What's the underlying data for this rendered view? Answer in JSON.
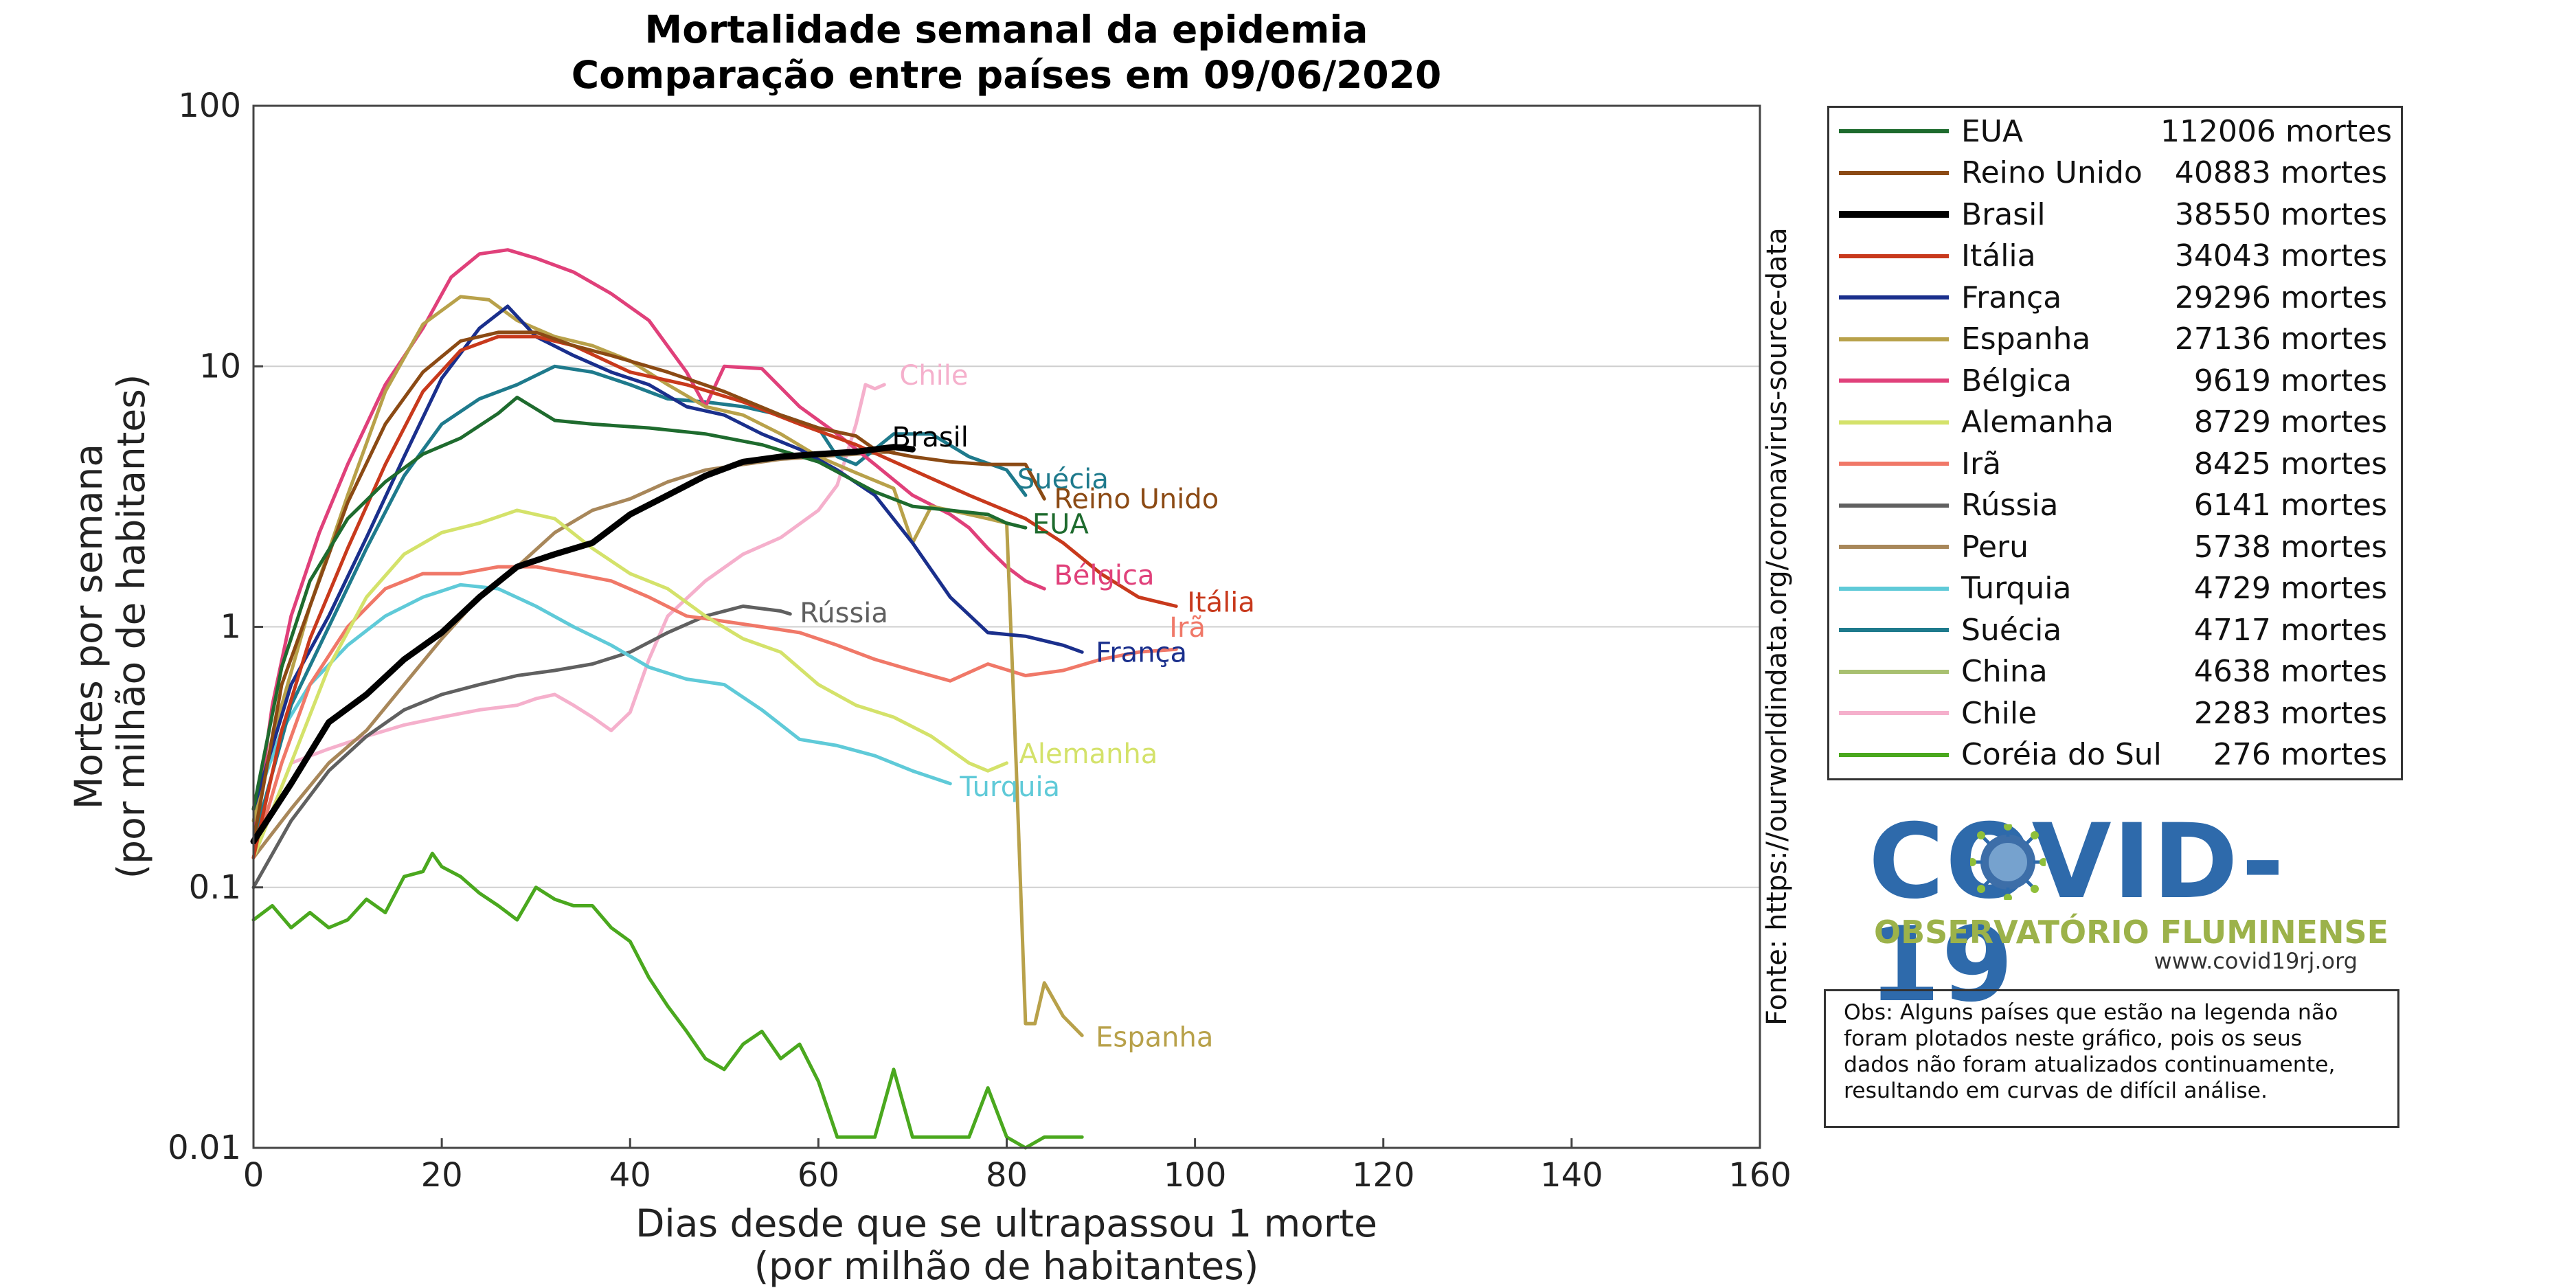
{
  "chart_data": {
    "type": "line",
    "title": "Mortalidade semanal da epidemia",
    "subtitle": "Comparação entre países em 09/06/2020",
    "xlabel": "Dias desde que se ultrapassou 1 morte",
    "xlabel2": "(por milhão de habitantes)",
    "ylabel": "Mortes por semana",
    "ylabel2": "(por milhão de habitantes)",
    "xlim": [
      0,
      160
    ],
    "ylim": [
      0.01,
      100
    ],
    "yscale": "log",
    "xticks": [
      0,
      20,
      40,
      60,
      80,
      100,
      120,
      140,
      160
    ],
    "yticks": [
      0.01,
      0.1,
      1,
      10,
      100
    ],
    "ytick_labels": [
      "0.01",
      "0.1",
      "1",
      "10",
      "100"
    ],
    "grid": "horizontal",
    "source": "Fonte: https://ourworldindata.org/coronavirus-source-data",
    "series": [
      {
        "name": "EUA",
        "deaths": "112006 mortes",
        "color": "#1e6b2e",
        "label": "EUA",
        "x": [
          0,
          3,
          6,
          10,
          14,
          18,
          22,
          26,
          28,
          32,
          36,
          42,
          48,
          54,
          60,
          66,
          70,
          74,
          78,
          80,
          82
        ],
        "y": [
          0.2,
          0.7,
          1.5,
          2.6,
          3.6,
          4.6,
          5.3,
          6.6,
          7.6,
          6.2,
          6.0,
          5.8,
          5.5,
          5.0,
          4.3,
          3.3,
          2.9,
          2.8,
          2.7,
          2.5,
          2.4
        ]
      },
      {
        "name": "Reino Unido",
        "deaths": "40883 mortes",
        "color": "#8b4a14",
        "label": "Reino Unido",
        "x": [
          0,
          3,
          6,
          10,
          14,
          18,
          22,
          26,
          30,
          34,
          38,
          44,
          50,
          56,
          60,
          64,
          66,
          70,
          74,
          78,
          82,
          84
        ],
        "y": [
          0.15,
          0.6,
          1.2,
          3.0,
          6.0,
          9.5,
          12.5,
          13.5,
          13.5,
          12.0,
          11.0,
          9.5,
          8.0,
          6.5,
          5.8,
          5.4,
          4.8,
          4.5,
          4.3,
          4.2,
          4.2,
          3.1
        ]
      },
      {
        "name": "Brasil",
        "deaths": "38550 mortes",
        "color": "#000000",
        "label": "Brasil",
        "bold": true,
        "x": [
          0,
          4,
          8,
          12,
          16,
          20,
          24,
          28,
          32,
          36,
          40,
          44,
          48,
          52,
          56,
          60,
          64,
          68,
          70
        ],
        "y": [
          0.15,
          0.25,
          0.43,
          0.55,
          0.75,
          0.95,
          1.3,
          1.7,
          1.9,
          2.1,
          2.7,
          3.2,
          3.8,
          4.3,
          4.5,
          4.6,
          4.7,
          4.9,
          4.8
        ]
      },
      {
        "name": "Itália",
        "deaths": "34043 mortes",
        "color": "#c8391c",
        "label": "Itália",
        "x": [
          0,
          3,
          6,
          10,
          14,
          18,
          22,
          26,
          30,
          34,
          40,
          46,
          52,
          58,
          64,
          70,
          76,
          82,
          86,
          90,
          94,
          98
        ],
        "y": [
          0.13,
          0.4,
          0.9,
          2.0,
          4.2,
          8.0,
          11.5,
          13.0,
          13.0,
          12.0,
          9.5,
          8.5,
          7.3,
          6.0,
          5.0,
          4.0,
          3.2,
          2.6,
          2.1,
          1.6,
          1.3,
          1.2
        ]
      },
      {
        "name": "França",
        "deaths": "29296 mortes",
        "color": "#1a2f8c",
        "label": "França",
        "x": [
          0,
          4,
          8,
          12,
          16,
          20,
          24,
          27,
          30,
          34,
          38,
          42,
          46,
          50,
          54,
          58,
          62,
          66,
          70,
          74,
          78,
          82,
          86,
          88
        ],
        "y": [
          0.2,
          0.6,
          1.1,
          2.2,
          4.5,
          9.0,
          14.0,
          17.0,
          13.0,
          11.0,
          9.5,
          8.5,
          7.0,
          6.5,
          5.5,
          4.8,
          4.0,
          3.2,
          2.1,
          1.3,
          0.95,
          0.92,
          0.85,
          0.8
        ]
      },
      {
        "name": "Espanha",
        "deaths": "27136 mortes",
        "color": "#b8a14a",
        "label": "Espanha",
        "x": [
          0,
          3,
          6,
          10,
          14,
          18,
          22,
          25,
          28,
          32,
          36,
          40,
          44,
          48,
          52,
          56,
          60,
          64,
          68,
          70,
          72,
          74,
          76,
          78,
          80,
          81,
          82,
          83,
          84,
          86,
          88
        ],
        "y": [
          0.18,
          0.5,
          1.2,
          3.2,
          8.0,
          14.5,
          18.5,
          18.0,
          15.0,
          13.0,
          12.0,
          10.5,
          8.5,
          7.0,
          6.5,
          5.5,
          4.5,
          3.9,
          3.4,
          2.1,
          2.9,
          2.8,
          2.7,
          2.6,
          2.5,
          0.3,
          0.03,
          0.03,
          0.043,
          0.032,
          0.027
        ]
      },
      {
        "name": "Bélgica",
        "deaths": "9619 mortes",
        "color": "#e0407a",
        "label": "Bélgica",
        "x": [
          0,
          2,
          4,
          7,
          10,
          14,
          18,
          21,
          24,
          27,
          30,
          34,
          38,
          42,
          46,
          48,
          50,
          54,
          58,
          62,
          66,
          70,
          74,
          76,
          78,
          80,
          82,
          84
        ],
        "y": [
          0.15,
          0.5,
          1.1,
          2.3,
          4.2,
          8.5,
          14,
          22,
          27,
          28,
          26,
          23,
          19,
          15,
          9.5,
          7.0,
          10,
          9.8,
          7.0,
          5.5,
          4.2,
          3.2,
          2.7,
          2.4,
          2.0,
          1.7,
          1.5,
          1.4
        ]
      },
      {
        "name": "Alemanha",
        "deaths": "8729 mortes",
        "color": "#d4e26a",
        "label": "Alemanha",
        "x": [
          0,
          4,
          8,
          12,
          16,
          20,
          24,
          28,
          32,
          36,
          40,
          44,
          48,
          52,
          56,
          60,
          64,
          68,
          72,
          76,
          78,
          80
        ],
        "y": [
          0.13,
          0.3,
          0.7,
          1.3,
          1.9,
          2.3,
          2.5,
          2.8,
          2.6,
          2.0,
          1.6,
          1.4,
          1.1,
          0.9,
          0.8,
          0.6,
          0.5,
          0.45,
          0.38,
          0.3,
          0.28,
          0.3
        ]
      },
      {
        "name": "Irã",
        "deaths": "8425 mortes",
        "color": "#f07868",
        "label": "Irã",
        "x": [
          0,
          3,
          6,
          10,
          14,
          18,
          22,
          26,
          30,
          34,
          38,
          42,
          46,
          50,
          54,
          58,
          62,
          66,
          70,
          74,
          78,
          82,
          86,
          90,
          94,
          98
        ],
        "y": [
          0.13,
          0.3,
          0.6,
          1.0,
          1.4,
          1.6,
          1.6,
          1.7,
          1.7,
          1.6,
          1.5,
          1.3,
          1.1,
          1.05,
          1.0,
          0.95,
          0.85,
          0.75,
          0.68,
          0.62,
          0.72,
          0.65,
          0.68,
          0.75,
          0.8,
          0.82
        ]
      },
      {
        "name": "Rússia",
        "deaths": "6141 mortes",
        "color": "#606060",
        "label": "Rússia",
        "x": [
          0,
          4,
          8,
          12,
          16,
          20,
          24,
          28,
          32,
          36,
          40,
          44,
          48,
          52,
          56,
          57
        ],
        "y": [
          0.1,
          0.18,
          0.28,
          0.38,
          0.48,
          0.55,
          0.6,
          0.65,
          0.68,
          0.72,
          0.8,
          0.95,
          1.1,
          1.2,
          1.15,
          1.12
        ]
      },
      {
        "name": "Peru",
        "deaths": "5738 mortes",
        "color": "#a8875a",
        "label": "",
        "x": [
          0,
          4,
          8,
          12,
          16,
          20,
          24,
          28,
          32,
          36,
          40,
          44,
          48,
          52,
          56,
          60,
          64,
          68
        ],
        "y": [
          0.13,
          0.2,
          0.3,
          0.4,
          0.6,
          0.9,
          1.3,
          1.7,
          2.3,
          2.8,
          3.1,
          3.6,
          4.0,
          4.2,
          4.4,
          4.5,
          4.6,
          4.7
        ]
      },
      {
        "name": "Turquia",
        "deaths": "4729 mortes",
        "color": "#5fcad8",
        "label": "Turquia",
        "x": [
          0,
          3,
          6,
          10,
          14,
          18,
          22,
          26,
          30,
          34,
          38,
          42,
          46,
          50,
          54,
          58,
          62,
          66,
          70,
          74
        ],
        "y": [
          0.2,
          0.4,
          0.6,
          0.85,
          1.1,
          1.3,
          1.45,
          1.4,
          1.2,
          1.0,
          0.85,
          0.7,
          0.63,
          0.6,
          0.48,
          0.37,
          0.35,
          0.32,
          0.28,
          0.25
        ]
      },
      {
        "name": "Suécia",
        "deaths": "4717 mortes",
        "color": "#1e7a8c",
        "label": "Suécia",
        "x": [
          0,
          4,
          8,
          12,
          16,
          20,
          24,
          28,
          32,
          36,
          40,
          44,
          48,
          52,
          56,
          60,
          62,
          64,
          68,
          72,
          76,
          80,
          82
        ],
        "y": [
          0.15,
          0.5,
          1.0,
          2.0,
          3.8,
          6.0,
          7.5,
          8.5,
          10.0,
          9.5,
          8.5,
          7.5,
          7.3,
          7.0,
          6.5,
          5.8,
          4.5,
          4.2,
          5.5,
          5.5,
          4.5,
          4.0,
          3.2
        ]
      },
      {
        "name": "China",
        "deaths": "4638 mortes",
        "color": "#a8c070",
        "label": "",
        "x": [],
        "y": []
      },
      {
        "name": "Chile",
        "deaths": "2283 mortes",
        "color": "#f5b0cc",
        "label": "Chile",
        "x": [
          0,
          4,
          8,
          12,
          16,
          20,
          24,
          28,
          30,
          32,
          34,
          36,
          38,
          40,
          42,
          44,
          48,
          52,
          56,
          60,
          62,
          64,
          65,
          66,
          67
        ],
        "y": [
          0.13,
          0.3,
          0.34,
          0.38,
          0.42,
          0.45,
          0.48,
          0.5,
          0.53,
          0.55,
          0.5,
          0.45,
          0.4,
          0.47,
          0.75,
          1.1,
          1.5,
          1.9,
          2.2,
          2.8,
          3.5,
          6.0,
          8.5,
          8.2,
          8.5
        ]
      },
      {
        "name": "Coréia do Sul",
        "deaths": "276 mortes",
        "color": "#4aa81e",
        "label": "",
        "x": [
          0,
          2,
          4,
          6,
          8,
          10,
          12,
          14,
          16,
          18,
          19,
          20,
          22,
          24,
          26,
          28,
          30,
          32,
          34,
          36,
          38,
          40,
          42,
          44,
          46,
          48,
          50,
          52,
          54,
          56,
          58,
          60,
          62,
          64,
          66,
          68,
          70,
          72,
          74,
          76,
          78,
          80,
          82,
          84,
          86,
          88
        ],
        "y": [
          0.075,
          0.085,
          0.07,
          0.08,
          0.07,
          0.075,
          0.09,
          0.08,
          0.11,
          0.115,
          0.135,
          0.12,
          0.11,
          0.095,
          0.085,
          0.075,
          0.1,
          0.09,
          0.085,
          0.085,
          0.07,
          0.062,
          0.045,
          0.035,
          0.028,
          0.022,
          0.02,
          0.025,
          0.028,
          0.022,
          0.025,
          0.018,
          0.011,
          0.011,
          0.011,
          0.02,
          0.011,
          0.011,
          0.011,
          0.011,
          0.017,
          0.011,
          0.01,
          0.011,
          0.011,
          0.011
        ]
      }
    ]
  },
  "logo": {
    "main": "COVID-19",
    "sub": "OBSERVATÓRIO FLUMINENSE",
    "url": "www.covid19rj.org"
  },
  "note": {
    "lines": [
      "Obs: Alguns países que estão na legenda não",
      "foram plotados neste gráfico, pois os seus",
      "dados não foram atualizados continuamente,",
      "resultando em curvas de difícil análise."
    ]
  }
}
